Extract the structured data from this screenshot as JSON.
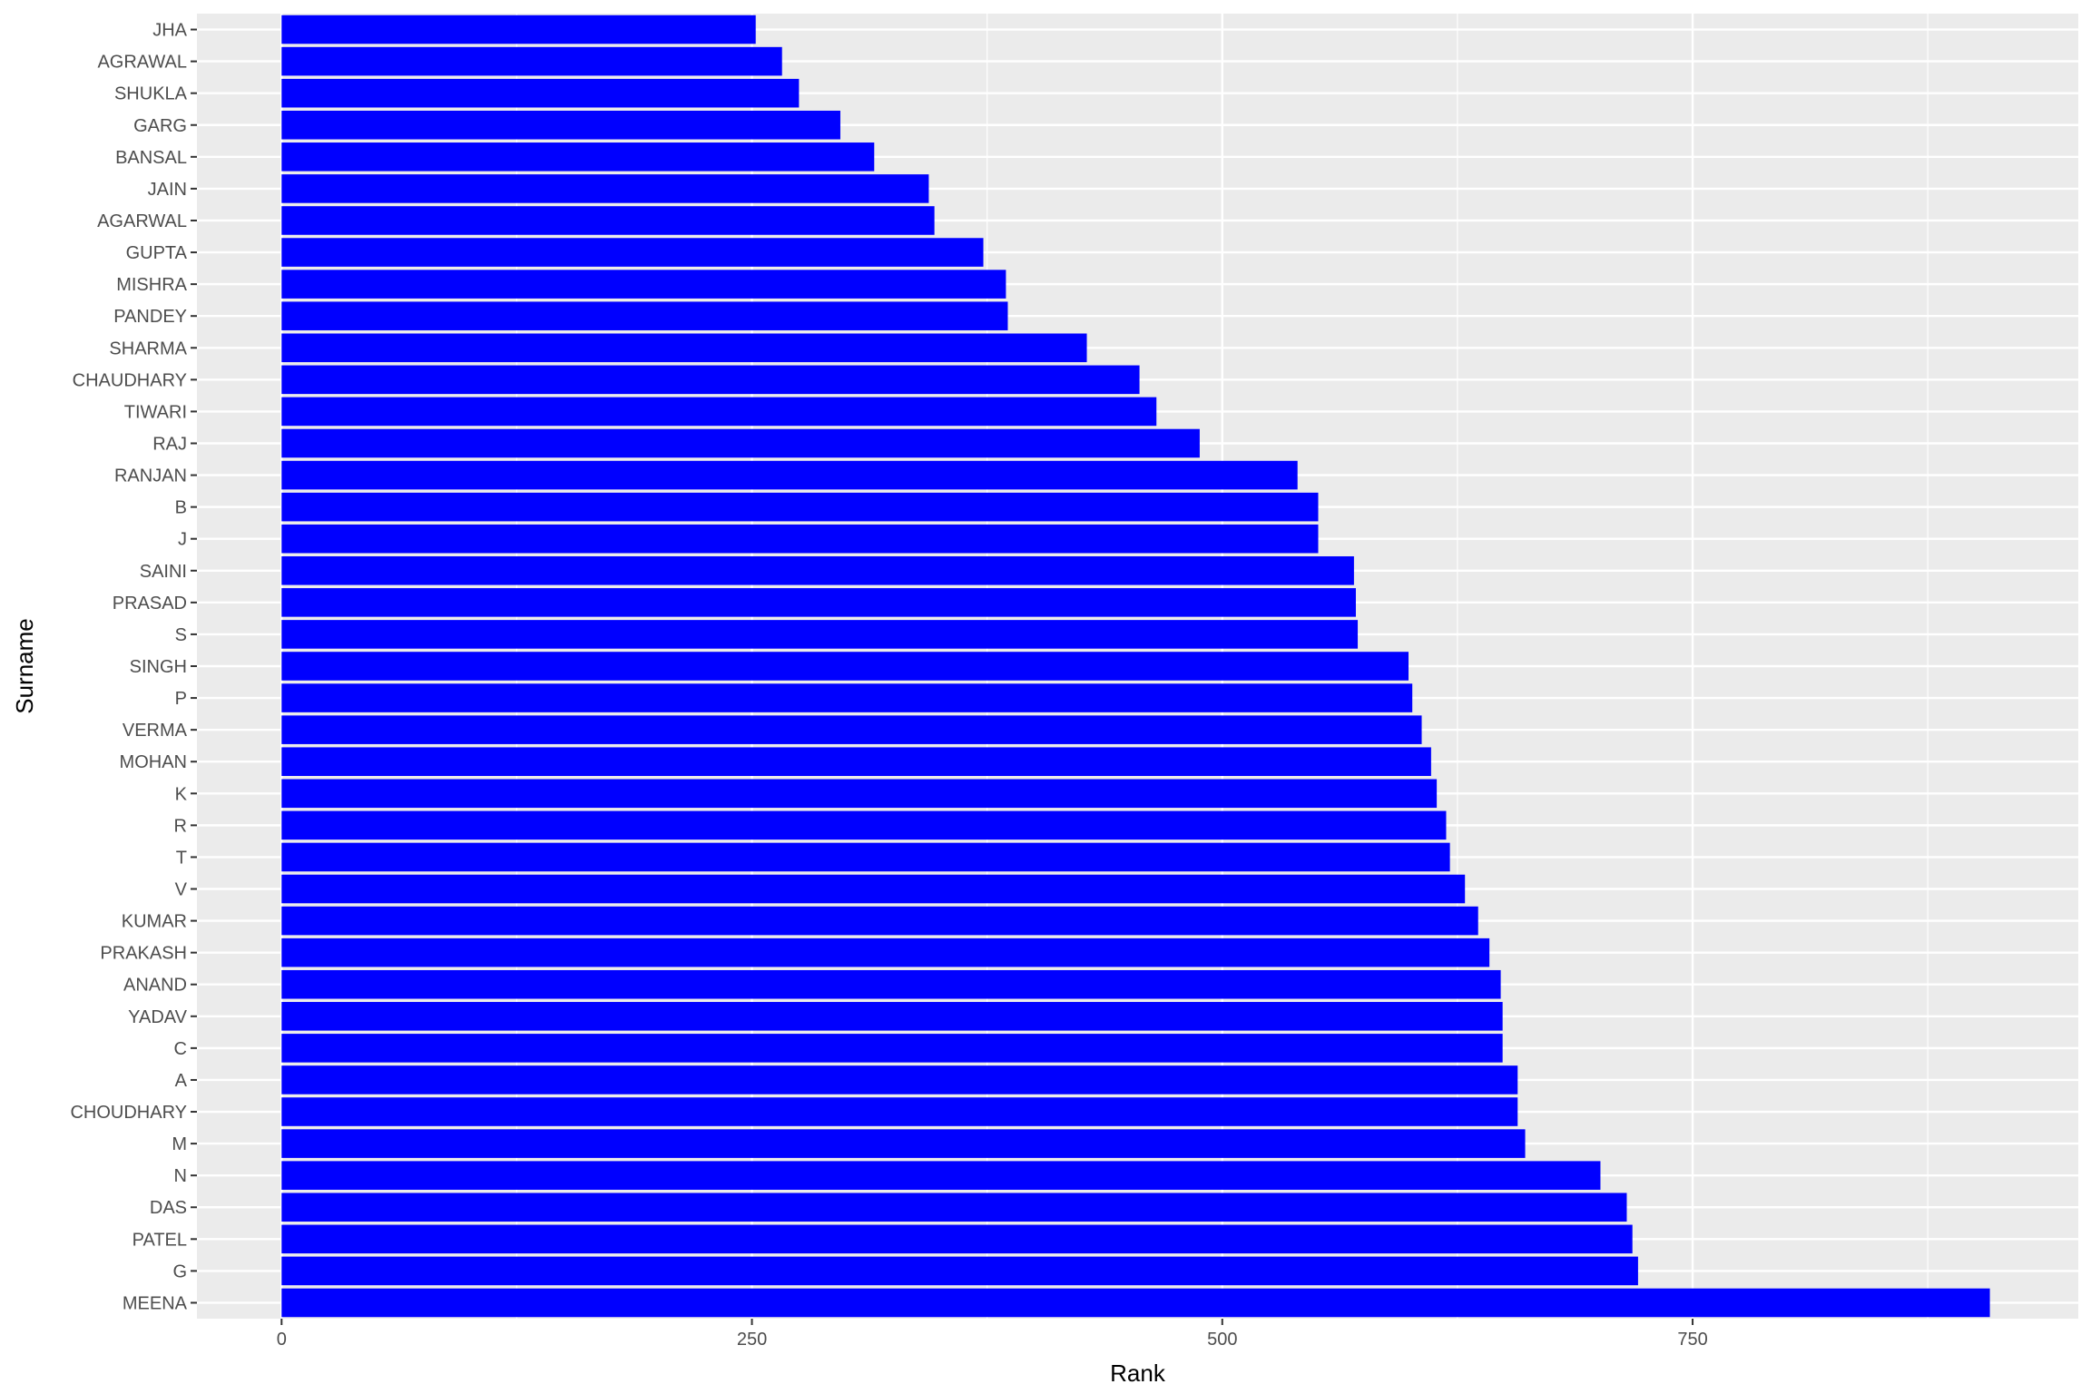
{
  "chart_data": {
    "type": "bar",
    "orientation": "horizontal",
    "xlabel": "Rank",
    "ylabel": "Surname",
    "xlim": [
      -45,
      955
    ],
    "xticks": [
      0,
      250,
      500,
      750
    ],
    "grid": true,
    "categories": [
      "JHA",
      "AGRAWAL",
      "SHUKLA",
      "GARG",
      "BANSAL",
      "JAIN",
      "AGARWAL",
      "GUPTA",
      "MISHRA",
      "PANDEY",
      "SHARMA",
      "CHAUDHARY",
      "TIWARI",
      "RAJ",
      "RANJAN",
      "B",
      "J",
      "SAINI",
      "PRASAD",
      "S",
      "SINGH",
      "P",
      "VERMA",
      "MOHAN",
      "K",
      "R",
      "T",
      "V",
      "KUMAR",
      "PRAKASH",
      "ANAND",
      "YADAV",
      "C",
      "A",
      "CHOUDHARY",
      "M",
      "N",
      "DAS",
      "PATEL",
      "G",
      "MEENA"
    ],
    "values": [
      252,
      266,
      275,
      297,
      315,
      344,
      347,
      373,
      385,
      386,
      428,
      456,
      465,
      488,
      540,
      551,
      551,
      570,
      571,
      572,
      599,
      601,
      606,
      611,
      614,
      619,
      621,
      629,
      636,
      642,
      648,
      649,
      649,
      657,
      657,
      661,
      701,
      715,
      718,
      721,
      908
    ],
    "bar_color": "#0000ff",
    "panel_color": "#ebebeb",
    "grid_color": "#ffffff"
  }
}
